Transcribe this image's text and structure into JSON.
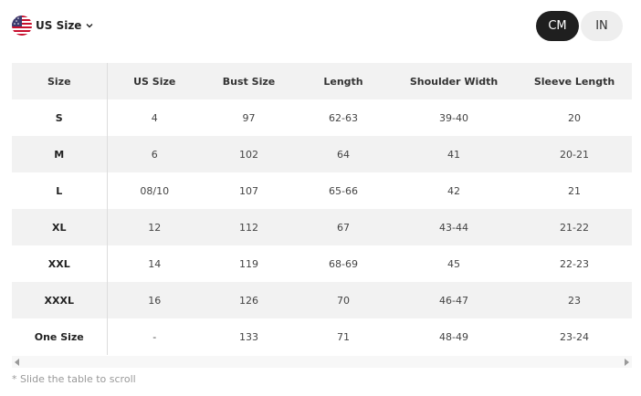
{
  "size_selector": {
    "label": "US Size",
    "flag_icon": "us-flag-icon",
    "chevron_icon": "chevron-down-icon"
  },
  "units": {
    "options": [
      "CM",
      "IN"
    ],
    "selected": "CM"
  },
  "table": {
    "headers": [
      "Size",
      "US Size",
      "Bust Size",
      "Length",
      "Shoulder Width",
      "Sleeve Length"
    ],
    "rows": [
      [
        "S",
        "4",
        "97",
        "62-63",
        "39-40",
        "20"
      ],
      [
        "M",
        "6",
        "102",
        "64",
        "41",
        "20-21"
      ],
      [
        "L",
        "08/10",
        "107",
        "65-66",
        "42",
        "21"
      ],
      [
        "XL",
        "12",
        "112",
        "67",
        "43-44",
        "21-22"
      ],
      [
        "XXL",
        "14",
        "119",
        "68-69",
        "45",
        "22-23"
      ],
      [
        "XXXL",
        "16",
        "126",
        "70",
        "46-47",
        "23"
      ],
      [
        "One Size",
        "-",
        "133",
        "71",
        "48-49",
        "23-24"
      ]
    ]
  },
  "scroll": {
    "left_icon": "scroll-left-icon",
    "right_icon": "scroll-right-icon"
  },
  "hint": "* Slide the table to scroll",
  "colors": {
    "selected_unit_bg": "#1f1f1f",
    "unselected_unit_bg": "#eeeeee",
    "shaded_row": "#f2f2f2",
    "hint_text": "#999999"
  }
}
